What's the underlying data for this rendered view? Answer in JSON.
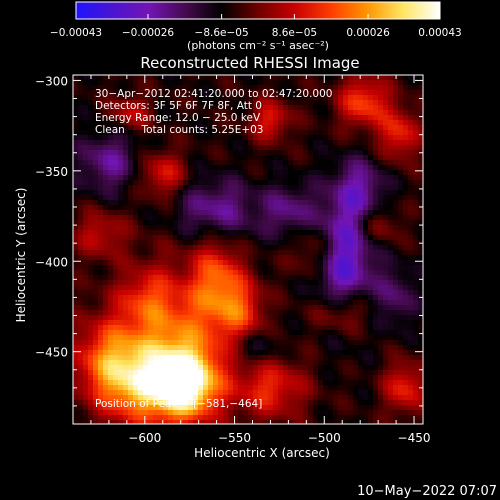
{
  "chart_data": {
    "type": "heatmap",
    "title": "Reconstructed RHESSI Image",
    "xlabel": "Heliocentric X (arcsec)",
    "ylabel": "Heliocentric Y (arcsec)",
    "xlim": [
      -640,
      -445
    ],
    "ylim": [
      -490,
      -297
    ],
    "xticks": [
      -600,
      -550,
      -500,
      -450
    ],
    "yticks": [
      -300,
      -350,
      -400,
      -450
    ],
    "xtick_labels": [
      "−600",
      "−550",
      "−500",
      "−450"
    ],
    "ytick_labels": [
      "−300",
      "−350",
      "−400",
      "−450"
    ],
    "colorbar": {
      "range": [
        -0.00043,
        0.00043
      ],
      "ticks": [
        -0.00043,
        -0.00026,
        -8.6e-05,
        8.6e-05,
        0.00026,
        0.00043
      ],
      "tick_labels": [
        "−0.00043",
        "−0.00026",
        "−8.6e−05",
        "8.6e−05",
        "0.00026",
        "0.00043"
      ],
      "units": "(photons cm⁻² s⁻¹ asec⁻²)",
      "colormap": [
        "#1e14ff",
        "#4b14d2",
        "#7314b4",
        "#460a50",
        "#000000",
        "#6e0000",
        "#c80000",
        "#ff3c00",
        "#ff9600",
        "#ffe664",
        "#ffffff"
      ]
    },
    "header_lines": [
      "30−Apr−2012 02:41:20.000 to 02:47:20.000",
      "Detectors: 3F 5F 6F 7F 8F, Att 0",
      "Energy Range: 12.0 − 25.0 keV",
      "Clean     Total counts: 5.25E+03"
    ],
    "peak_label": "Position of Peak = [−581,−464]",
    "peak": [
      -581,
      -464
    ],
    "sources": [
      {
        "x": -578,
        "y": -468,
        "amp": 1.25,
        "sx": 13,
        "sy": 13
      },
      {
        "x": -585,
        "y": -445,
        "amp": 0.75,
        "sx": 20,
        "sy": 28
      },
      {
        "x": -620,
        "y": -455,
        "amp": 0.7,
        "sx": 14,
        "sy": 16
      },
      {
        "x": -605,
        "y": -470,
        "amp": 0.55,
        "sx": 14,
        "sy": 14
      },
      {
        "x": -560,
        "y": -412,
        "amp": 0.65,
        "sx": 9,
        "sy": 18
      },
      {
        "x": -545,
        "y": -428,
        "amp": 0.55,
        "sx": 8,
        "sy": 14
      },
      {
        "x": -530,
        "y": -470,
        "amp": 0.55,
        "sx": 14,
        "sy": 12
      },
      {
        "x": -490,
        "y": -428,
        "amp": 0.5,
        "sx": 12,
        "sy": 9
      },
      {
        "x": -505,
        "y": -395,
        "amp": 0.42,
        "sx": 9,
        "sy": 11
      },
      {
        "x": -478,
        "y": -312,
        "amp": 0.65,
        "sx": 10,
        "sy": 10
      },
      {
        "x": -458,
        "y": -330,
        "amp": 0.55,
        "sx": 8,
        "sy": 10
      },
      {
        "x": -530,
        "y": -322,
        "amp": 0.5,
        "sx": 8,
        "sy": 8
      },
      {
        "x": -590,
        "y": -352,
        "amp": 0.5,
        "sx": 9,
        "sy": 9
      },
      {
        "x": -608,
        "y": -318,
        "amp": 0.4,
        "sx": 8,
        "sy": 7
      },
      {
        "x": -625,
        "y": -385,
        "amp": 0.4,
        "sx": 10,
        "sy": 9
      },
      {
        "x": -455,
        "y": -470,
        "amp": 0.55,
        "sx": 8,
        "sy": 10
      },
      {
        "x": -470,
        "y": -380,
        "amp": 0.35,
        "sx": 8,
        "sy": 8
      },
      {
        "x": -600,
        "y": -420,
        "amp": 0.3,
        "sx": 10,
        "sy": 10
      },
      {
        "x": -490,
        "y": -400,
        "amp": -0.75,
        "sx": 12,
        "sy": 24
      },
      {
        "x": -560,
        "y": -372,
        "amp": -0.5,
        "sx": 16,
        "sy": 12
      },
      {
        "x": -620,
        "y": -345,
        "amp": -0.45,
        "sx": 12,
        "sy": 12
      },
      {
        "x": -520,
        "y": -372,
        "amp": -0.4,
        "sx": 10,
        "sy": 10
      },
      {
        "x": -480,
        "y": -360,
        "amp": -0.45,
        "sx": 10,
        "sy": 12
      },
      {
        "x": -540,
        "y": -448,
        "amp": -0.35,
        "sx": 10,
        "sy": 8
      },
      {
        "x": -460,
        "y": -420,
        "amp": -0.35,
        "sx": 8,
        "sy": 12
      }
    ]
  },
  "timestamp": "10−May−2022 07:07"
}
